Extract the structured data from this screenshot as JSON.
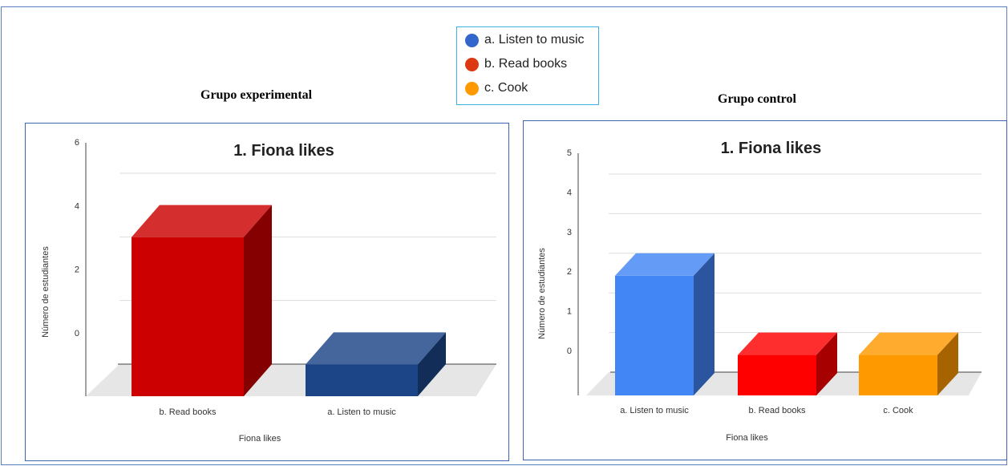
{
  "legend": {
    "items": [
      {
        "label": "a. Listen to music",
        "color": "#3366cc"
      },
      {
        "label": "b. Read books",
        "color": "#dc3912"
      },
      {
        "label": "c. Cook",
        "color": "#ff9900"
      }
    ]
  },
  "group_titles": {
    "experimental": "Grupo experimental",
    "control": "Grupo control"
  },
  "chart_data": [
    {
      "type": "bar",
      "title": "1. Fiona likes",
      "xlabel": "Fiona likes",
      "ylabel": "Número de estudiantes",
      "ylim": [
        0,
        6
      ],
      "yticks": [
        "0",
        "2",
        "4",
        "6"
      ],
      "grid": true,
      "style": "3d",
      "categories": [
        "b. Read books",
        "a. Listen to music"
      ],
      "values": [
        5,
        1
      ],
      "colors": [
        "#cc0000",
        "#1c4587"
      ]
    },
    {
      "type": "bar",
      "title": "1. Fiona likes",
      "xlabel": "Fiona likes",
      "ylabel": "Número de estudiantes",
      "ylim": [
        0,
        5
      ],
      "yticks": [
        "0",
        "1",
        "2",
        "3",
        "4",
        "5"
      ],
      "grid": true,
      "style": "3d",
      "categories": [
        "a. Listen to music",
        "b. Read books",
        "c. Cook"
      ],
      "values": [
        3,
        1,
        1
      ],
      "colors": [
        "#4285f4",
        "#ff0000",
        "#ff9900"
      ]
    }
  ]
}
